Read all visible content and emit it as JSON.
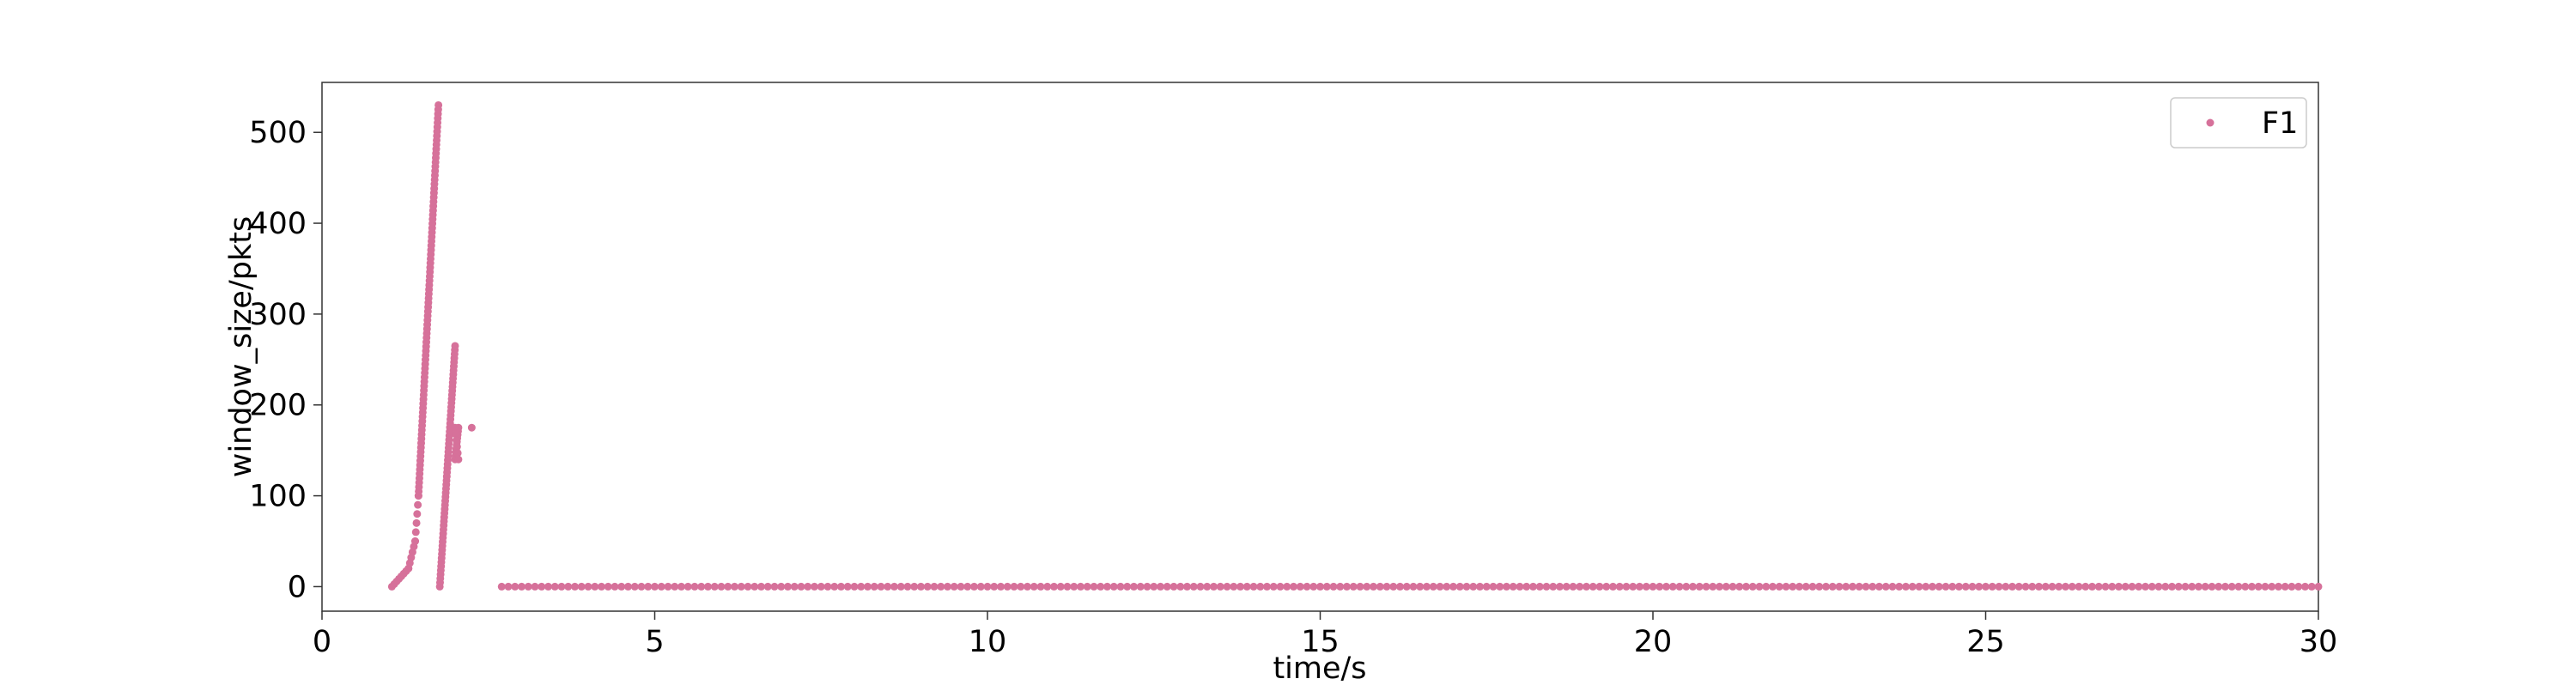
{
  "chart_data": {
    "type": "scatter",
    "xlabel": "time/s",
    "ylabel": "window_size/pkts",
    "xlim": [
      0,
      30
    ],
    "ylim": [
      -27,
      555
    ],
    "x_ticks": [
      0,
      5,
      10,
      15,
      20,
      25,
      30
    ],
    "y_ticks": [
      0,
      100,
      200,
      300,
      400,
      500
    ],
    "legend_position": "top-right",
    "grid": false,
    "series": [
      {
        "name": "F1",
        "color": "#d6719a",
        "segments": [
          {
            "kind": "ramp",
            "from": [
              1.05,
              0
            ],
            "to": [
              1.3,
              20
            ],
            "count": 8
          },
          {
            "kind": "ramp",
            "from": [
              1.3,
              20
            ],
            "to": [
              1.4,
              50
            ],
            "count": 6
          },
          {
            "kind": "ramp",
            "from": [
              1.4,
              50
            ],
            "to": [
              1.45,
              100
            ],
            "count": 6
          },
          {
            "kind": "ramp",
            "from": [
              1.45,
              100
            ],
            "to": [
              1.75,
              530
            ],
            "count": 90
          },
          {
            "kind": "ramp",
            "from": [
              1.77,
              0
            ],
            "to": [
              2.0,
              265
            ],
            "count": 60
          },
          {
            "kind": "ramp",
            "from": [
              2.0,
              140
            ],
            "to": [
              2.05,
              175
            ],
            "count": 10
          },
          {
            "kind": "ramp",
            "from": [
              2.0,
              175
            ],
            "to": [
              2.05,
              140
            ],
            "count": 6
          },
          {
            "kind": "ramp",
            "from": [
              2.7,
              0
            ],
            "to": [
              30,
              0
            ],
            "count": 274
          }
        ],
        "points": [
          [
            2.25,
            175
          ]
        ]
      }
    ]
  }
}
